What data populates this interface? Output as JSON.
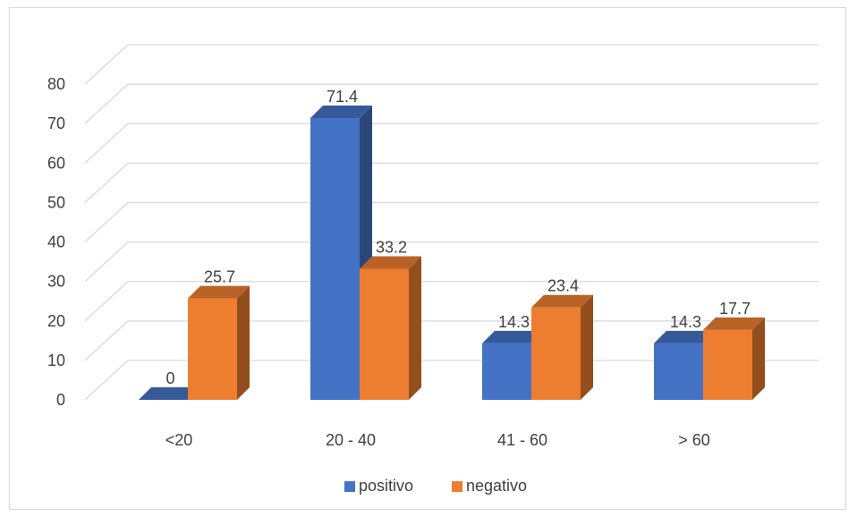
{
  "chart_data": {
    "type": "bar",
    "style": "3d-clustered-column",
    "categories": [
      "<20",
      "20 - 40",
      "41 - 60",
      "> 60"
    ],
    "series": [
      {
        "name": "positivo",
        "values": [
          0,
          71.4,
          14.3,
          14.3
        ],
        "color": "#4472C4",
        "data_labels": [
          "0",
          "71.4",
          "14.3",
          "14.3"
        ]
      },
      {
        "name": "negativo",
        "values": [
          25.7,
          33.2,
          23.4,
          17.7
        ],
        "color": "#ED7D31",
        "data_labels": [
          "25.7",
          "33.2",
          "23.4",
          "17.7"
        ]
      }
    ],
    "ylim": [
      0,
      80
    ],
    "yticks": [
      "0",
      "10",
      "20",
      "30",
      "40",
      "50",
      "60",
      "70",
      "80"
    ],
    "title": "",
    "xlabel": "",
    "ylabel": "",
    "grid": true,
    "legend_position": "bottom",
    "gridline_color": "#d9d9d9"
  }
}
